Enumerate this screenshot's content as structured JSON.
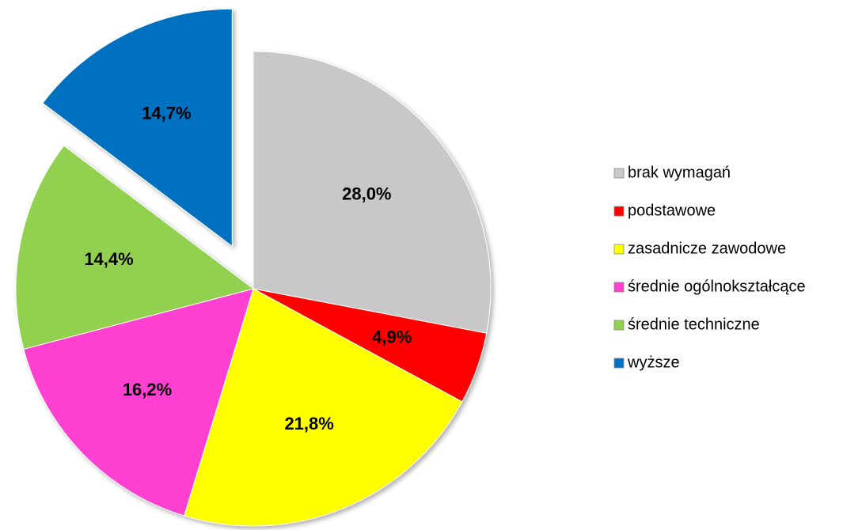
{
  "chart_data": {
    "type": "pie",
    "categories": [
      "brak wymagań",
      "podstawowe",
      "zasadnicze zawodowe",
      "średnie ogólnokształcące",
      "średnie techniczne",
      "wyższe"
    ],
    "values": [
      28.0,
      4.9,
      21.8,
      16.2,
      14.4,
      14.7
    ],
    "value_labels": [
      "28,0%",
      "4,9%",
      "21,8%",
      "16,2%",
      "14,4%",
      "14,7%"
    ],
    "colors": [
      "#c8c8c8",
      "#ff0000",
      "#ffff00",
      "#ff40d0",
      "#92d050",
      "#0070c0"
    ],
    "exploded": [
      false,
      false,
      false,
      false,
      false,
      true
    ],
    "legend": "right"
  }
}
